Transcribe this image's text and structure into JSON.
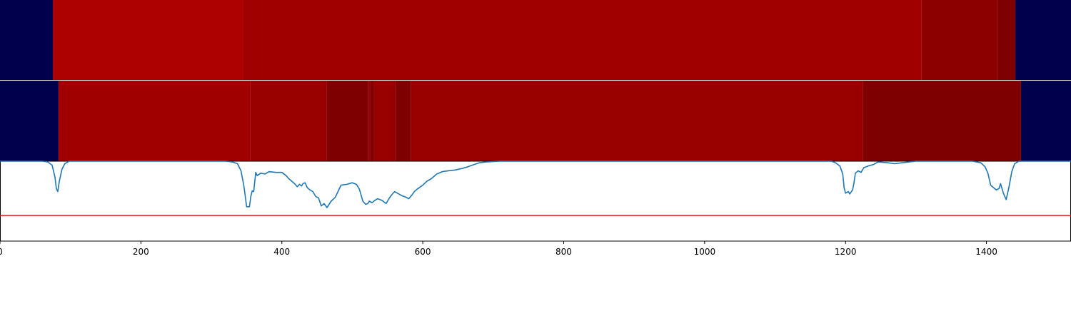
{
  "chart_data": {
    "type": "heatmap",
    "title": "",
    "xlabel": "",
    "ylabel": "",
    "xlim": [
      0,
      1520
    ],
    "x_ticks": [
      0,
      200,
      400,
      600,
      800,
      1000,
      1200,
      1400
    ],
    "x_tick_labels": [
      "0",
      "200",
      "400",
      "600",
      "800",
      "1000",
      "1200",
      "1400"
    ],
    "colors": {
      "background_band": "#00004d",
      "line": "#1f77b4",
      "threshold": "#e41a1c",
      "frame": "#000000"
    },
    "tracks": [
      {
        "segments": [
          {
            "start": 0,
            "end": 75,
            "color": "#00004d"
          },
          {
            "start": 75,
            "end": 345,
            "color": "#ad0000"
          },
          {
            "start": 345,
            "end": 1308,
            "color": "#a10000"
          },
          {
            "start": 1308,
            "end": 1416,
            "color": "#8d0000"
          },
          {
            "start": 1416,
            "end": 1441,
            "color": "#7e0000"
          },
          {
            "start": 1441,
            "end": 1520,
            "color": "#00004d"
          }
        ]
      },
      {
        "segments": [
          {
            "start": 0,
            "end": 83,
            "color": "#00004d"
          },
          {
            "start": 83,
            "end": 355,
            "color": "#a00000"
          },
          {
            "start": 355,
            "end": 464,
            "color": "#980000"
          },
          {
            "start": 464,
            "end": 522,
            "color": "#7e0000"
          },
          {
            "start": 522,
            "end": 525,
            "color": "#980000"
          },
          {
            "start": 525,
            "end": 530,
            "color": "#7e0000"
          },
          {
            "start": 530,
            "end": 561,
            "color": "#980000"
          },
          {
            "start": 561,
            "end": 583,
            "color": "#7e0000"
          },
          {
            "start": 583,
            "end": 1225,
            "color": "#980000"
          },
          {
            "start": 1225,
            "end": 1449,
            "color": "#7e0000"
          },
          {
            "start": 1449,
            "end": 1520,
            "color": "#00004d"
          }
        ]
      }
    ],
    "line_series": {
      "ylim": [
        0,
        1
      ],
      "threshold": 0.32,
      "points": [
        [
          0,
          1.0
        ],
        [
          60,
          1.0
        ],
        [
          68,
          0.99
        ],
        [
          74,
          0.95
        ],
        [
          78,
          0.8
        ],
        [
          80,
          0.66
        ],
        [
          82,
          0.62
        ],
        [
          84,
          0.74
        ],
        [
          88,
          0.9
        ],
        [
          92,
          0.97
        ],
        [
          98,
          1.0
        ],
        [
          320,
          1.0
        ],
        [
          330,
          0.99
        ],
        [
          337,
          0.97
        ],
        [
          342,
          0.88
        ],
        [
          346,
          0.7
        ],
        [
          348,
          0.57
        ],
        [
          350,
          0.43
        ],
        [
          354,
          0.43
        ],
        [
          356,
          0.56
        ],
        [
          358,
          0.63
        ],
        [
          360,
          0.62
        ],
        [
          363,
          0.86
        ],
        [
          365,
          0.82
        ],
        [
          370,
          0.85
        ],
        [
          376,
          0.84
        ],
        [
          382,
          0.87
        ],
        [
          392,
          0.86
        ],
        [
          400,
          0.86
        ],
        [
          406,
          0.82
        ],
        [
          410,
          0.78
        ],
        [
          414,
          0.75
        ],
        [
          418,
          0.72
        ],
        [
          422,
          0.68
        ],
        [
          425,
          0.71
        ],
        [
          428,
          0.69
        ],
        [
          430,
          0.72
        ],
        [
          433,
          0.73
        ],
        [
          436,
          0.67
        ],
        [
          440,
          0.64
        ],
        [
          444,
          0.62
        ],
        [
          448,
          0.56
        ],
        [
          452,
          0.54
        ],
        [
          456,
          0.44
        ],
        [
          460,
          0.47
        ],
        [
          464,
          0.42
        ],
        [
          470,
          0.5
        ],
        [
          476,
          0.55
        ],
        [
          484,
          0.7
        ],
        [
          492,
          0.71
        ],
        [
          500,
          0.73
        ],
        [
          506,
          0.71
        ],
        [
          510,
          0.65
        ],
        [
          515,
          0.5
        ],
        [
          519,
          0.46
        ],
        [
          522,
          0.47
        ],
        [
          524,
          0.5
        ],
        [
          528,
          0.48
        ],
        [
          532,
          0.51
        ],
        [
          536,
          0.53
        ],
        [
          542,
          0.51
        ],
        [
          548,
          0.47
        ],
        [
          552,
          0.53
        ],
        [
          556,
          0.58
        ],
        [
          560,
          0.62
        ],
        [
          566,
          0.59
        ],
        [
          570,
          0.57
        ],
        [
          576,
          0.55
        ],
        [
          580,
          0.53
        ],
        [
          584,
          0.57
        ],
        [
          588,
          0.62
        ],
        [
          592,
          0.65
        ],
        [
          600,
          0.7
        ],
        [
          606,
          0.75
        ],
        [
          612,
          0.78
        ],
        [
          620,
          0.84
        ],
        [
          628,
          0.87
        ],
        [
          636,
          0.88
        ],
        [
          646,
          0.89
        ],
        [
          656,
          0.91
        ],
        [
          664,
          0.93
        ],
        [
          670,
          0.95
        ],
        [
          680,
          0.98
        ],
        [
          690,
          0.99
        ],
        [
          710,
          1.0
        ],
        [
          1180,
          1.0
        ],
        [
          1186,
          0.98
        ],
        [
          1192,
          0.94
        ],
        [
          1196,
          0.84
        ],
        [
          1198,
          0.67
        ],
        [
          1200,
          0.6
        ],
        [
          1204,
          0.62
        ],
        [
          1206,
          0.59
        ],
        [
          1210,
          0.64
        ],
        [
          1212,
          0.73
        ],
        [
          1214,
          0.85
        ],
        [
          1218,
          0.88
        ],
        [
          1222,
          0.86
        ],
        [
          1226,
          0.92
        ],
        [
          1232,
          0.94
        ],
        [
          1240,
          0.96
        ],
        [
          1246,
          0.99
        ],
        [
          1260,
          0.98
        ],
        [
          1270,
          0.97
        ],
        [
          1280,
          0.98
        ],
        [
          1290,
          0.99
        ],
        [
          1300,
          1.0
        ],
        [
          1380,
          1.0
        ],
        [
          1392,
          0.98
        ],
        [
          1398,
          0.93
        ],
        [
          1402,
          0.85
        ],
        [
          1406,
          0.7
        ],
        [
          1410,
          0.67
        ],
        [
          1414,
          0.64
        ],
        [
          1418,
          0.66
        ],
        [
          1420,
          0.72
        ],
        [
          1424,
          0.6
        ],
        [
          1428,
          0.52
        ],
        [
          1432,
          0.68
        ],
        [
          1436,
          0.87
        ],
        [
          1440,
          0.97
        ],
        [
          1446,
          1.0
        ],
        [
          1520,
          1.0
        ]
      ]
    }
  }
}
